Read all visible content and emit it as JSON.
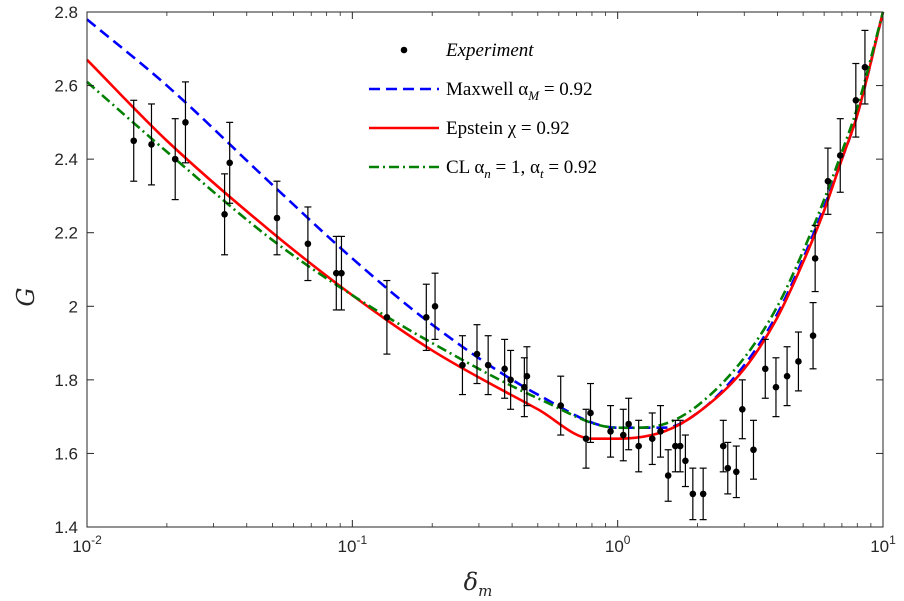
{
  "chart_data": {
    "type": "line",
    "xlabel": "δ",
    "xlabel_subscript": "m",
    "ylabel": "G",
    "xscale": "log",
    "xlim": [
      0.01,
      10
    ],
    "ylim": [
      1.4,
      2.8
    ],
    "grid": false,
    "legend_placement": "top-center",
    "x_ticks": [
      {
        "value": 0.01,
        "base": "10",
        "exp": "-2"
      },
      {
        "value": 0.1,
        "base": "10",
        "exp": "-1"
      },
      {
        "value": 1,
        "base": "10",
        "exp": "0"
      },
      {
        "value": 10,
        "base": "10",
        "exp": "1"
      }
    ],
    "y_ticks": [
      {
        "value": 1.4,
        "label": "1.4"
      },
      {
        "value": 1.6,
        "label": "1.6"
      },
      {
        "value": 1.8,
        "label": "1.8"
      },
      {
        "value": 2.0,
        "label": "2"
      },
      {
        "value": 2.2,
        "label": "2.2"
      },
      {
        "value": 2.4,
        "label": "2.4"
      },
      {
        "value": 2.6,
        "label": "2.6"
      },
      {
        "value": 2.8,
        "label": "2.8"
      }
    ],
    "legend": [
      {
        "key": "experiment",
        "parts": [
          {
            "text": "Experiment",
            "style": "italic"
          }
        ]
      },
      {
        "key": "maxwell",
        "parts": [
          {
            "text": "Maxwell α",
            "style": "normal"
          },
          {
            "text": "M",
            "style": "sub"
          },
          {
            "text": " = 0.92",
            "style": "normal"
          }
        ]
      },
      {
        "key": "epstein",
        "parts": [
          {
            "text": "Epstein χ = 0.92",
            "style": "normal"
          }
        ]
      },
      {
        "key": "cl",
        "parts": [
          {
            "text": "CL α",
            "style": "normal"
          },
          {
            "text": "n",
            "style": "sub"
          },
          {
            "text": " = 1, α",
            "style": "normal"
          },
          {
            "text": "t",
            "style": "sub"
          },
          {
            "text": " = 0.92",
            "style": "normal"
          }
        ]
      }
    ],
    "series": [
      {
        "key": "maxwell",
        "color": "#0000ff",
        "dash": "dashed",
        "x": [
          0.01,
          0.02,
          0.05,
          0.1,
          0.2,
          0.5,
          1,
          1.5,
          2,
          3,
          4,
          5,
          6,
          7,
          8,
          10
        ],
        "y": [
          2.78,
          2.6,
          2.33,
          2.13,
          1.95,
          1.76,
          1.67,
          1.67,
          1.71,
          1.84,
          1.98,
          2.13,
          2.27,
          2.4,
          2.52,
          2.8
        ]
      },
      {
        "key": "epstein",
        "color": "#ff0000",
        "dash": "solid",
        "x": [
          0.01,
          0.02,
          0.05,
          0.1,
          0.2,
          0.5,
          0.8,
          1,
          1.5,
          2,
          3,
          4,
          5,
          6,
          7,
          8,
          10
        ],
        "y": [
          2.67,
          2.45,
          2.2,
          2.03,
          1.88,
          1.72,
          1.64,
          1.64,
          1.66,
          1.71,
          1.83,
          1.97,
          2.12,
          2.26,
          2.4,
          2.52,
          2.8
        ]
      },
      {
        "key": "cl",
        "color": "#008000",
        "dash": "dashdot",
        "x": [
          0.01,
          0.02,
          0.05,
          0.1,
          0.2,
          0.5,
          1,
          1.5,
          2,
          3,
          4,
          5,
          6,
          7,
          8,
          10
        ],
        "y": [
          2.61,
          2.42,
          2.18,
          2.03,
          1.9,
          1.75,
          1.67,
          1.68,
          1.73,
          1.86,
          2.0,
          2.15,
          2.29,
          2.42,
          2.54,
          2.8
        ]
      }
    ],
    "experiment": {
      "color": "#000000",
      "x": [
        0.015,
        0.0175,
        0.0215,
        0.0235,
        0.033,
        0.0345,
        0.052,
        0.068,
        0.087,
        0.091,
        0.135,
        0.19,
        0.205,
        0.26,
        0.295,
        0.325,
        0.375,
        0.395,
        0.445,
        0.455,
        0.61,
        0.76,
        0.79,
        0.94,
        1.05,
        1.1,
        1.2,
        1.35,
        1.45,
        1.55,
        1.65,
        1.72,
        1.8,
        1.92,
        2.1,
        2.5,
        2.6,
        2.8,
        2.95,
        3.25,
        3.6,
        3.95,
        4.35,
        4.8,
        5.45,
        5.55,
        6.2,
        6.9,
        7.9,
        8.55
      ],
      "y": [
        2.45,
        2.44,
        2.4,
        2.5,
        2.25,
        2.39,
        2.24,
        2.17,
        2.09,
        2.09,
        1.97,
        1.97,
        2.0,
        1.84,
        1.87,
        1.84,
        1.83,
        1.8,
        1.78,
        1.81,
        1.73,
        1.64,
        1.71,
        1.66,
        1.65,
        1.68,
        1.62,
        1.64,
        1.66,
        1.54,
        1.62,
        1.62,
        1.58,
        1.49,
        1.49,
        1.62,
        1.56,
        1.55,
        1.72,
        1.61,
        1.83,
        1.78,
        1.81,
        1.85,
        1.92,
        2.13,
        2.34,
        2.41,
        2.56,
        2.65
      ],
      "err": [
        0.11,
        0.11,
        0.11,
        0.11,
        0.11,
        0.11,
        0.1,
        0.1,
        0.1,
        0.1,
        0.1,
        0.09,
        0.09,
        0.08,
        0.08,
        0.08,
        0.08,
        0.08,
        0.08,
        0.08,
        0.08,
        0.08,
        0.08,
        0.07,
        0.07,
        0.07,
        0.07,
        0.07,
        0.07,
        0.07,
        0.07,
        0.07,
        0.07,
        0.07,
        0.07,
        0.07,
        0.07,
        0.07,
        0.08,
        0.08,
        0.08,
        0.08,
        0.08,
        0.08,
        0.09,
        0.09,
        0.09,
        0.1,
        0.1,
        0.1
      ]
    }
  }
}
